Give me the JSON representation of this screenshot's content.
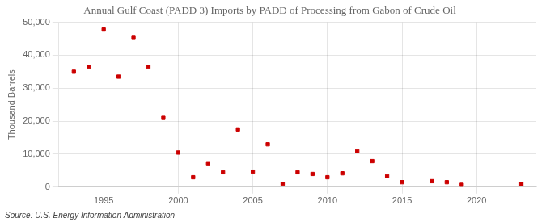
{
  "chart_data": {
    "type": "scatter",
    "title": "Annual Gulf Coast (PADD 3) Imports by PADD of Processing from Gabon of Crude Oil",
    "ylabel": "Thousand Barrels",
    "annotation": "Source: U.S. Energy Information Administration",
    "x": [
      1993,
      1994,
      1995,
      1996,
      1997,
      1998,
      1999,
      2000,
      2001,
      2002,
      2003,
      2004,
      2005,
      2006,
      2007,
      2008,
      2009,
      2010,
      2011,
      2012,
      2013,
      2014,
      2015,
      2016,
      2017,
      2018,
      2019,
      2020,
      2021,
      2022,
      2023
    ],
    "values": [
      35000,
      36500,
      47800,
      33500,
      45500,
      36500,
      21000,
      10500,
      3000,
      7000,
      4500,
      17500,
      4700,
      13000,
      1000,
      4500,
      4000,
      3000,
      4200,
      10900,
      7900,
      3300,
      1500,
      null,
      1800,
      1500,
      700,
      null,
      null,
      null,
      900
    ],
    "color": "#cc0000",
    "marker": "square",
    "xlim": [
      1992,
      2024
    ],
    "xticks": [
      1995,
      2000,
      2005,
      2010,
      2015,
      2020
    ],
    "ylim": [
      0,
      50000
    ],
    "yticks": [
      0,
      {
        "value": 10000,
        "label": "10,000"
      },
      {
        "value": 20000,
        "label": "20,000"
      },
      {
        "value": 30000,
        "label": "30,000"
      },
      {
        "value": 40000,
        "label": "40,000"
      },
      {
        "value": 50000,
        "label": "50,000"
      }
    ],
    "grid": true
  }
}
